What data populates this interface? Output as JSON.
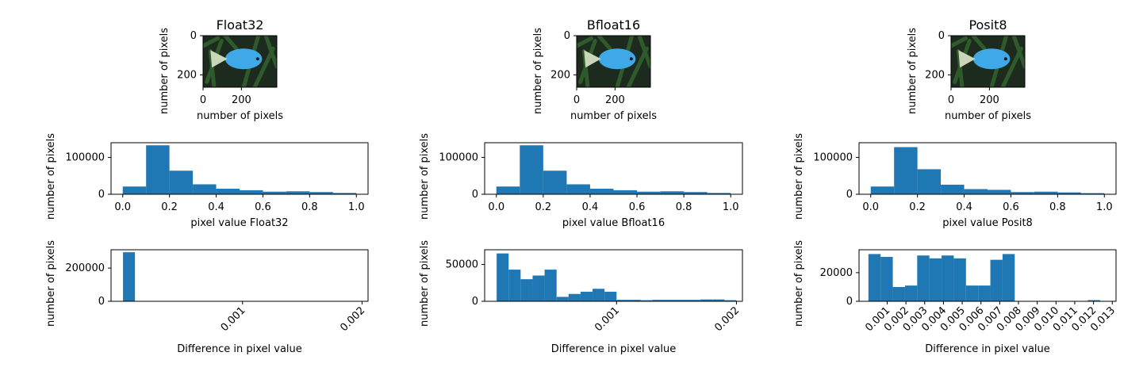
{
  "chart_data": [
    {
      "type": "image",
      "title": "Float32",
      "xlabel": "number of pixels",
      "ylabel": "number of pixels",
      "xticks": [
        "0",
        "200"
      ],
      "yticks": [
        "0",
        "200"
      ],
      "colors": {
        "background": "#1d2a1e",
        "leaf": "#2f5a2c",
        "fish": "#3fa9e8",
        "fin": "#c9d6b8"
      }
    },
    {
      "type": "image",
      "title": "Bfloat16",
      "xlabel": "number of pixels",
      "ylabel": "number of pixels",
      "xticks": [
        "0",
        "200"
      ],
      "yticks": [
        "0",
        "200"
      ],
      "colors": {
        "background": "#1d2a1e",
        "leaf": "#2f5a2c",
        "fish": "#3fa9e8",
        "fin": "#c9d6b8"
      }
    },
    {
      "type": "image",
      "title": "Posit8",
      "xlabel": "number of pixels",
      "ylabel": "number of pixels",
      "xticks": [
        "0",
        "200"
      ],
      "yticks": [
        "0",
        "200"
      ],
      "colors": {
        "background": "#1d2a1e",
        "leaf": "#2f5a2c",
        "fish": "#3fa9e8",
        "fin": "#c9d6b8"
      }
    },
    {
      "type": "bar",
      "xlabel": "pixel value Float32",
      "ylabel": "number of pixels",
      "xlim": [
        -0.05,
        1.05
      ],
      "ylim": [
        0,
        140000
      ],
      "xticks": [
        0.0,
        0.2,
        0.4,
        0.6,
        0.8,
        1.0
      ],
      "xtick_labels": [
        "0.0",
        "0.2",
        "0.4",
        "0.6",
        "0.8",
        "1.0"
      ],
      "yticks": [
        0,
        100000
      ],
      "ytick_labels": [
        "0",
        "100000"
      ],
      "bin_edges": [
        0.0,
        0.1,
        0.2,
        0.3,
        0.4,
        0.5,
        0.6,
        0.7,
        0.8,
        0.9,
        1.0
      ],
      "values": [
        21000,
        133000,
        64000,
        27000,
        15000,
        11000,
        7000,
        8000,
        6000,
        3500
      ],
      "color": "#1f77b4"
    },
    {
      "type": "bar",
      "xlabel": "pixel value Bfloat16",
      "ylabel": "number of pixels",
      "xlim": [
        -0.05,
        1.05
      ],
      "ylim": [
        0,
        140000
      ],
      "xticks": [
        0.0,
        0.2,
        0.4,
        0.6,
        0.8,
        1.0
      ],
      "xtick_labels": [
        "0.0",
        "0.2",
        "0.4",
        "0.6",
        "0.8",
        "1.0"
      ],
      "yticks": [
        0,
        100000
      ],
      "ytick_labels": [
        "0",
        "100000"
      ],
      "bin_edges": [
        0.0,
        0.1,
        0.2,
        0.3,
        0.4,
        0.5,
        0.6,
        0.7,
        0.8,
        0.9,
        1.0
      ],
      "values": [
        21000,
        133000,
        64000,
        27000,
        15000,
        11000,
        7000,
        8000,
        6000,
        3500
      ],
      "color": "#1f77b4"
    },
    {
      "type": "bar",
      "xlabel": "pixel value Posit8",
      "ylabel": "number of pixels",
      "xlim": [
        -0.05,
        1.05
      ],
      "ylim": [
        0,
        140000
      ],
      "xticks": [
        0.0,
        0.2,
        0.4,
        0.6,
        0.8,
        1.0
      ],
      "xtick_labels": [
        "0.0",
        "0.2",
        "0.4",
        "0.6",
        "0.8",
        "1.0"
      ],
      "yticks": [
        0,
        100000
      ],
      "ytick_labels": [
        "0",
        "100000"
      ],
      "bin_edges": [
        0.0,
        0.1,
        0.2,
        0.3,
        0.4,
        0.5,
        0.6,
        0.7,
        0.8,
        0.9,
        1.0
      ],
      "values": [
        21000,
        128000,
        68000,
        26000,
        14000,
        12000,
        6000,
        7000,
        5000,
        3000
      ],
      "color": "#1f77b4"
    },
    {
      "type": "bar",
      "xlabel": "Difference in pixel value",
      "ylabel": "number of pixels",
      "xlim": [
        -0.0001,
        0.00205
      ],
      "ylim": [
        0,
        310000
      ],
      "xticks": [
        0.001,
        0.002
      ],
      "xtick_labels": [
        "0.001",
        "0.002"
      ],
      "tick_rotation": 45,
      "yticks": [
        0,
        200000
      ],
      "ytick_labels": [
        "0",
        "200000"
      ],
      "bin_edges": [
        0.0,
        0.0001
      ],
      "values": [
        295000
      ],
      "color": "#1f77b4"
    },
    {
      "type": "bar",
      "xlabel": "Difference in pixel value",
      "ylabel": "number of pixels",
      "xlim": [
        -0.0001,
        0.00205
      ],
      "ylim": [
        0,
        70000
      ],
      "xticks": [
        0.001,
        0.002
      ],
      "xtick_labels": [
        "0.001",
        "0.002"
      ],
      "tick_rotation": 45,
      "yticks": [
        0,
        50000
      ],
      "ytick_labels": [
        "0",
        "50000"
      ],
      "bin_edges": [
        0.0,
        0.0001,
        0.0002,
        0.0003,
        0.0004,
        0.0005,
        0.0006,
        0.0007,
        0.0008,
        0.0009,
        0.001,
        0.0011,
        0.0012,
        0.0013,
        0.0014,
        0.0015,
        0.0016,
        0.0017,
        0.0018,
        0.0019,
        0.002
      ],
      "values": [
        65000,
        43000,
        30000,
        35000,
        43000,
        6000,
        10000,
        13000,
        17000,
        13000,
        2000,
        2000,
        1500,
        2000,
        2000,
        2000,
        2000,
        2500,
        2500,
        1500
      ],
      "color": "#1f77b4"
    },
    {
      "type": "bar",
      "xlabel": "Difference in pixel value",
      "ylabel": "number of pixels",
      "xlim": [
        -0.0005,
        0.0132
      ],
      "ylim": [
        0,
        36000
      ],
      "xticks": [
        0.001,
        0.002,
        0.003,
        0.004,
        0.005,
        0.006,
        0.007,
        0.008,
        0.009,
        0.01,
        0.011,
        0.012,
        0.013
      ],
      "xtick_labels": [
        "0.001",
        "0.002",
        "0.003",
        "0.004",
        "0.005",
        "0.006",
        "0.007",
        "0.008",
        "0.009",
        "0.010",
        "0.011",
        "0.012",
        "0.013"
      ],
      "tick_rotation": 45,
      "yticks": [
        0,
        20000
      ],
      "ytick_labels": [
        "0",
        "20000"
      ],
      "bin_edges": [
        0.0,
        0.00065,
        0.0013,
        0.00195,
        0.0026,
        0.00325,
        0.0039,
        0.00455,
        0.0052,
        0.00585,
        0.0065,
        0.00715,
        0.0078,
        0.00845,
        0.0091,
        0.00975,
        0.0104,
        0.01105,
        0.0117,
        0.01235,
        0.013
      ],
      "values": [
        33000,
        31000,
        10000,
        11000,
        32000,
        30000,
        32000,
        30000,
        11000,
        11000,
        29000,
        33000,
        0,
        0,
        0,
        0,
        0,
        0,
        800,
        0
      ],
      "color": "#1f77b4"
    }
  ]
}
